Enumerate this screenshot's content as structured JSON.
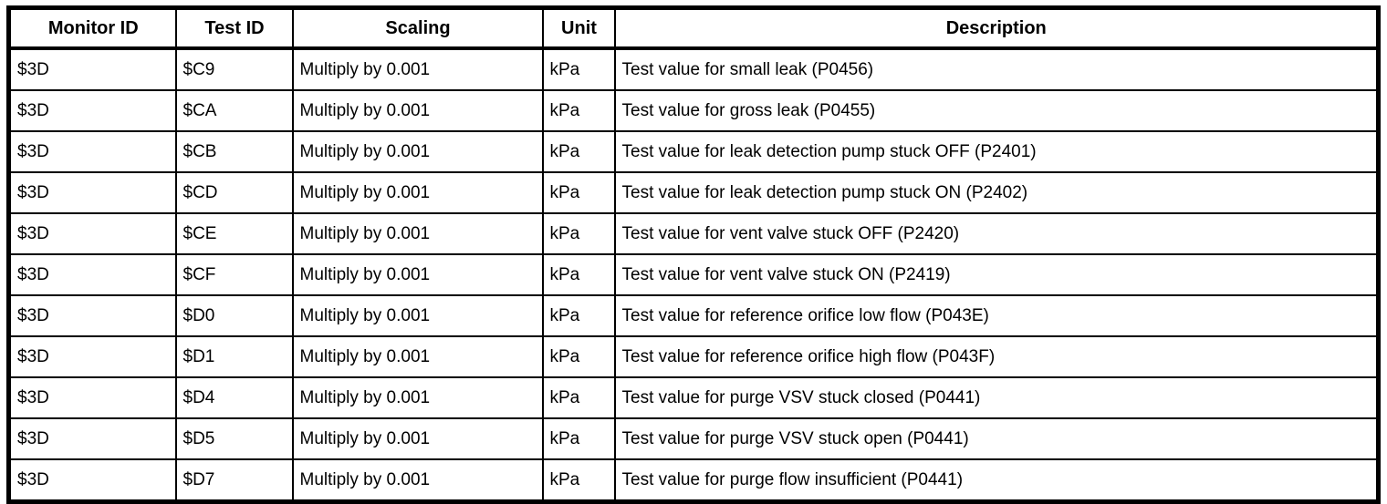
{
  "table": {
    "headers": [
      "Monitor ID",
      "Test ID",
      "Scaling",
      "Unit",
      "Description"
    ],
    "rows": [
      {
        "monitor_id": "$3D",
        "test_id": "$C9",
        "scaling": "Multiply by 0.001",
        "unit": "kPa",
        "description": "Test value for small leak (P0456)"
      },
      {
        "monitor_id": "$3D",
        "test_id": "$CA",
        "scaling": "Multiply by 0.001",
        "unit": "kPa",
        "description": "Test value for gross leak (P0455)"
      },
      {
        "monitor_id": "$3D",
        "test_id": "$CB",
        "scaling": "Multiply by 0.001",
        "unit": "kPa",
        "description": "Test value for leak detection pump stuck OFF (P2401)"
      },
      {
        "monitor_id": "$3D",
        "test_id": "$CD",
        "scaling": "Multiply by 0.001",
        "unit": "kPa",
        "description": "Test value for leak detection pump stuck ON (P2402)"
      },
      {
        "monitor_id": "$3D",
        "test_id": "$CE",
        "scaling": "Multiply by 0.001",
        "unit": "kPa",
        "description": "Test value for vent valve stuck OFF (P2420)"
      },
      {
        "monitor_id": "$3D",
        "test_id": "$CF",
        "scaling": "Multiply by 0.001",
        "unit": "kPa",
        "description": "Test value for vent valve stuck ON (P2419)"
      },
      {
        "monitor_id": "$3D",
        "test_id": "$D0",
        "scaling": "Multiply by 0.001",
        "unit": "kPa",
        "description": "Test value for reference orifice low flow (P043E)"
      },
      {
        "monitor_id": "$3D",
        "test_id": "$D1",
        "scaling": "Multiply by 0.001",
        "unit": "kPa",
        "description": "Test value for reference orifice high flow (P043F)"
      },
      {
        "monitor_id": "$3D",
        "test_id": "$D4",
        "scaling": "Multiply by 0.001",
        "unit": "kPa",
        "description": "Test value for purge VSV stuck closed (P0441)"
      },
      {
        "monitor_id": "$3D",
        "test_id": "$D5",
        "scaling": "Multiply by 0.001",
        "unit": "kPa",
        "description": "Test value for purge VSV stuck open (P0441)"
      },
      {
        "monitor_id": "$3D",
        "test_id": "$D7",
        "scaling": "Multiply by 0.001",
        "unit": "kPa",
        "description": "Test value for purge flow insufficient (P0441)"
      }
    ]
  }
}
